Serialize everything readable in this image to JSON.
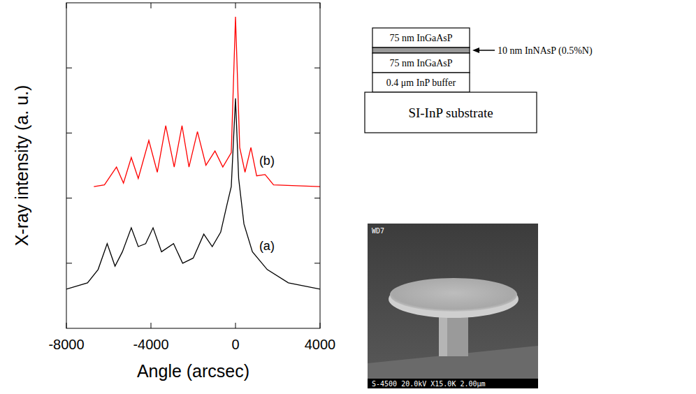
{
  "chart_data": {
    "type": "line",
    "x_label": "Angle (arcsec)",
    "y_label": "X-ray intensity (a. u.)",
    "log": "y",
    "xlim": [
      -8000,
      4000
    ],
    "xticks": [
      -8000,
      -4000,
      0,
      4000
    ],
    "ylim": [
      1,
      100000
    ],
    "yticks": [
      10,
      100,
      1000,
      10000
    ],
    "tick_labels": "x",
    "grid": false,
    "series": [
      {
        "name": "(a)",
        "color": "#000000",
        "x": [
          -8000,
          -7000,
          -6500,
          -6070,
          -5700,
          -5350,
          -4930,
          -4600,
          -4250,
          -3900,
          -3500,
          -2930,
          -2500,
          -2000,
          -1500,
          -1100,
          -700,
          -400,
          -200,
          0,
          150,
          400,
          800,
          1500,
          2500,
          4000
        ],
        "values": [
          4,
          5,
          8,
          20,
          9,
          15,
          35,
          18,
          20,
          35,
          15,
          20,
          10,
          12,
          28,
          18,
          30,
          80,
          150,
          3400,
          200,
          40,
          15,
          8,
          5,
          4
        ]
      },
      {
        "name": "(b)",
        "color": "#ff0000",
        "x": [
          -6700,
          -6200,
          -5630,
          -5300,
          -4930,
          -4600,
          -4100,
          -3700,
          -3300,
          -2900,
          -2530,
          -2200,
          -1800,
          -1400,
          -970,
          -600,
          -200,
          0,
          200,
          450,
          730,
          1000,
          1400,
          1800,
          4000
        ],
        "values": [
          150,
          160,
          300,
          170,
          420,
          200,
          770,
          250,
          1300,
          300,
          1300,
          300,
          1050,
          320,
          530,
          300,
          500,
          61000,
          600,
          250,
          600,
          220,
          230,
          160,
          150
        ]
      }
    ]
  },
  "layer_stack": {
    "layers": [
      "75 nm InGaAsP",
      "75 nm InGaAsP",
      "0.4 μm InP buffer"
    ],
    "callout": "10 nm InNAsP (0.5%N)",
    "substrate": "SI-InP substrate"
  },
  "sem_image": {
    "header": "WD7",
    "footer": "S-4500 20.0kV X15.0K 2.00μm"
  }
}
